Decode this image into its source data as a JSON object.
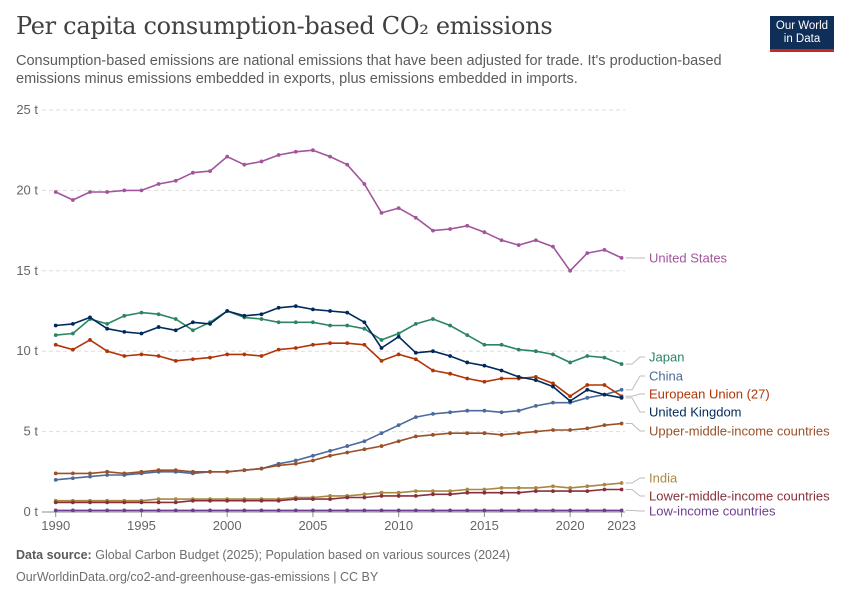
{
  "header": {
    "title": "Per capita consumption-based CO₂ emissions",
    "subtitle": "Consumption-based emissions are national emissions that have been adjusted for trade. It's production-based emissions minus emissions embedded in exports, plus emissions embedded in imports.",
    "logo_line1": "Our World",
    "logo_line2": "in Data"
  },
  "footer": {
    "source_label": "Data source:",
    "source_text": "Global Carbon Budget (2025); Population based on various sources (2024)",
    "url": "OurWorldinData.org/co2-and-greenhouse-gas-emissions | CC BY"
  },
  "chart_data": {
    "type": "line",
    "ylim": [
      0,
      25
    ],
    "xlim": [
      1990,
      2023
    ],
    "yticks": [
      0,
      5,
      10,
      15,
      20,
      25
    ],
    "ytick_labels": [
      "0 t",
      "5 t",
      "10 t",
      "15 t",
      "20 t",
      "25 t"
    ],
    "xticks": [
      1990,
      1995,
      2000,
      2005,
      2010,
      2015,
      2020,
      2023
    ],
    "xtick_labels": [
      "1990",
      "1995",
      "2000",
      "2005",
      "2010",
      "2015",
      "2020",
      "2023"
    ],
    "grid": "horizontal-dashed",
    "x": [
      1990,
      1991,
      1992,
      1993,
      1994,
      1995,
      1996,
      1997,
      1998,
      1999,
      2000,
      2001,
      2002,
      2003,
      2004,
      2005,
      2006,
      2007,
      2008,
      2009,
      2010,
      2011,
      2012,
      2013,
      2014,
      2015,
      2016,
      2017,
      2018,
      2019,
      2020,
      2021,
      2022,
      2023
    ],
    "series": [
      {
        "name": "United States",
        "color": "#a2559c",
        "values": [
          19.9,
          19.4,
          19.9,
          19.9,
          20.0,
          20.0,
          20.4,
          20.6,
          21.1,
          21.2,
          22.1,
          21.6,
          21.8,
          22.2,
          22.4,
          22.5,
          22.1,
          21.6,
          20.4,
          18.6,
          18.9,
          18.3,
          17.5,
          17.6,
          17.8,
          17.4,
          16.9,
          16.6,
          16.9,
          16.5,
          15.0,
          16.1,
          16.3,
          15.8
        ]
      },
      {
        "name": "Japan",
        "color": "#2c8465",
        "values": [
          11.0,
          11.1,
          12.0,
          11.7,
          12.2,
          12.4,
          12.3,
          12.0,
          11.3,
          11.8,
          12.5,
          12.1,
          12.0,
          11.8,
          11.8,
          11.8,
          11.6,
          11.6,
          11.4,
          10.7,
          11.1,
          11.7,
          12.0,
          11.6,
          11.0,
          10.4,
          10.4,
          10.1,
          10.0,
          9.8,
          9.3,
          9.7,
          9.6,
          9.2
        ]
      },
      {
        "name": "China",
        "color": "#4c6a9c",
        "values": [
          2.0,
          2.1,
          2.2,
          2.3,
          2.3,
          2.4,
          2.5,
          2.5,
          2.4,
          2.5,
          2.5,
          2.6,
          2.7,
          3.0,
          3.2,
          3.5,
          3.8,
          4.1,
          4.4,
          4.9,
          5.4,
          5.9,
          6.1,
          6.2,
          6.3,
          6.3,
          6.2,
          6.3,
          6.6,
          6.8,
          6.8,
          7.1,
          7.3,
          7.6
        ]
      },
      {
        "name": "European Union (27)",
        "color": "#b13507",
        "values": [
          10.4,
          10.1,
          10.7,
          10.0,
          9.7,
          9.8,
          9.7,
          9.4,
          9.5,
          9.6,
          9.8,
          9.8,
          9.7,
          10.1,
          10.2,
          10.4,
          10.5,
          10.5,
          10.4,
          9.4,
          9.8,
          9.5,
          8.8,
          8.6,
          8.3,
          8.1,
          8.3,
          8.3,
          8.4,
          8.0,
          7.2,
          7.9,
          7.9,
          7.2
        ]
      },
      {
        "name": "United Kingdom",
        "color": "#00295b",
        "values": [
          11.6,
          11.7,
          12.1,
          11.4,
          11.2,
          11.1,
          11.5,
          11.3,
          11.8,
          11.7,
          12.5,
          12.2,
          12.3,
          12.7,
          12.8,
          12.6,
          12.5,
          12.4,
          11.8,
          10.2,
          10.9,
          9.9,
          10.0,
          9.7,
          9.3,
          9.1,
          8.8,
          8.4,
          8.2,
          7.8,
          6.9,
          7.6,
          7.3,
          7.1
        ]
      },
      {
        "name": "Upper-middle-income countries",
        "color": "#9a5129",
        "values": [
          2.4,
          2.4,
          2.4,
          2.5,
          2.4,
          2.5,
          2.6,
          2.6,
          2.5,
          2.5,
          2.5,
          2.6,
          2.7,
          2.9,
          3.0,
          3.2,
          3.5,
          3.7,
          3.9,
          4.1,
          4.4,
          4.7,
          4.8,
          4.9,
          4.9,
          4.9,
          4.8,
          4.9,
          5.0,
          5.1,
          5.1,
          5.2,
          5.4,
          5.5
        ]
      },
      {
        "name": "India",
        "color": "#a98843",
        "values": [
          0.7,
          0.7,
          0.7,
          0.7,
          0.7,
          0.7,
          0.8,
          0.8,
          0.8,
          0.8,
          0.8,
          0.8,
          0.8,
          0.8,
          0.9,
          0.9,
          1.0,
          1.0,
          1.1,
          1.2,
          1.2,
          1.3,
          1.3,
          1.3,
          1.4,
          1.4,
          1.5,
          1.5,
          1.5,
          1.6,
          1.5,
          1.6,
          1.7,
          1.8
        ]
      },
      {
        "name": "Lower-middle-income countries",
        "color": "#883039",
        "values": [
          0.6,
          0.6,
          0.6,
          0.6,
          0.6,
          0.6,
          0.6,
          0.6,
          0.7,
          0.7,
          0.7,
          0.7,
          0.7,
          0.7,
          0.8,
          0.8,
          0.8,
          0.9,
          0.9,
          1.0,
          1.0,
          1.0,
          1.1,
          1.1,
          1.2,
          1.2,
          1.2,
          1.2,
          1.3,
          1.3,
          1.3,
          1.3,
          1.4,
          1.4
        ]
      },
      {
        "name": "Low-income countries",
        "color": "#6d3e91",
        "values": [
          0.1,
          0.1,
          0.1,
          0.1,
          0.1,
          0.1,
          0.1,
          0.1,
          0.1,
          0.1,
          0.1,
          0.1,
          0.1,
          0.1,
          0.1,
          0.1,
          0.1,
          0.1,
          0.1,
          0.1,
          0.1,
          0.1,
          0.1,
          0.1,
          0.1,
          0.1,
          0.1,
          0.1,
          0.1,
          0.1,
          0.1,
          0.1,
          0.1,
          0.1
        ]
      }
    ]
  }
}
